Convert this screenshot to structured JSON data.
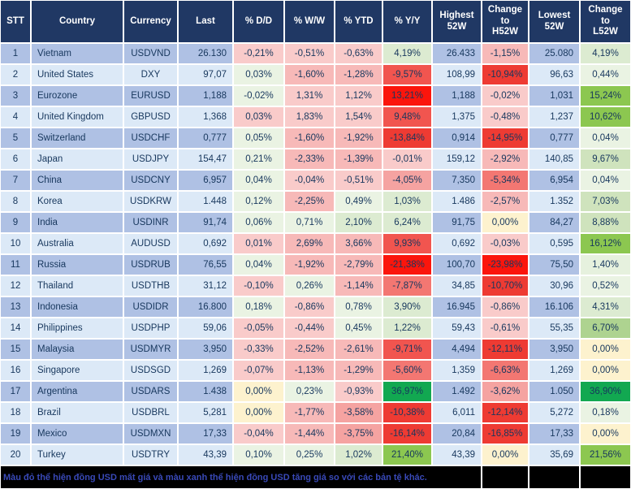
{
  "chart_data": {
    "type": "table",
    "columns": [
      "STT",
      "Country",
      "Currency",
      "Last",
      "% D/D",
      "% W/W",
      "% YTD",
      "% Y/Y",
      "Highest\n52W",
      "Change\nto\nH52W",
      "Lowest\n52W",
      "Change\nto\nL52W"
    ],
    "rows": [
      [
        {
          "v": "1"
        },
        {
          "v": "Vietnam"
        },
        {
          "v": "USDVND"
        },
        {
          "v": "26.130"
        },
        {
          "v": "-0,21%",
          "bg": "#F9CBCA"
        },
        {
          "v": "-0,51%",
          "bg": "#F9CBCA"
        },
        {
          "v": "-0,63%",
          "bg": "#F9CBCA"
        },
        {
          "v": "4,19%",
          "bg": "#DCEBD1"
        },
        {
          "v": "26.433"
        },
        {
          "v": "-1,15%",
          "bg": "#F7B9B8"
        },
        {
          "v": "25.080"
        },
        {
          "v": "4,19%",
          "bg": "#DCEBD1"
        }
      ],
      [
        {
          "v": "2"
        },
        {
          "v": "United States"
        },
        {
          "v": "DXY"
        },
        {
          "v": "97,07"
        },
        {
          "v": "0,03%",
          "bg": "#EAF3E3"
        },
        {
          "v": "-1,60%",
          "bg": "#F7B9B8"
        },
        {
          "v": "-1,28%",
          "bg": "#F7B9B8"
        },
        {
          "v": "-9,57%",
          "bg": "#F1554F"
        },
        {
          "v": "108,99"
        },
        {
          "v": "-10,94%",
          "bg": "#EE3B33"
        },
        {
          "v": "96,63"
        },
        {
          "v": "0,44%",
          "bg": "#EAF3E3"
        }
      ],
      [
        {
          "v": "3"
        },
        {
          "v": "Eurozone"
        },
        {
          "v": "EURUSD"
        },
        {
          "v": "1,188"
        },
        {
          "v": "-0,02%",
          "bg": "#EAF3E3"
        },
        {
          "v": "1,31%",
          "bg": "#F9CBCA"
        },
        {
          "v": "1,12%",
          "bg": "#F9CBCA"
        },
        {
          "v": "13,21%",
          "bg": "#FB150C"
        },
        {
          "v": "1,188"
        },
        {
          "v": "-0,02%",
          "bg": "#F9CBCA"
        },
        {
          "v": "1,031"
        },
        {
          "v": "15,24%",
          "bg": "#8CC750"
        }
      ],
      [
        {
          "v": "4"
        },
        {
          "v": "United Kingdom"
        },
        {
          "v": "GBPUSD"
        },
        {
          "v": "1,368"
        },
        {
          "v": "0,03%",
          "bg": "#F9CBCA"
        },
        {
          "v": "1,83%",
          "bg": "#F9CBCA"
        },
        {
          "v": "1,54%",
          "bg": "#F9CBCA"
        },
        {
          "v": "9,48%",
          "bg": "#F1554F"
        },
        {
          "v": "1,375"
        },
        {
          "v": "-0,48%",
          "bg": "#F9CBCA"
        },
        {
          "v": "1,237"
        },
        {
          "v": "10,62%",
          "bg": "#8CC750"
        }
      ],
      [
        {
          "v": "5"
        },
        {
          "v": "Switzerland"
        },
        {
          "v": "USDCHF"
        },
        {
          "v": "0,777"
        },
        {
          "v": "0,05%",
          "bg": "#EAF3E3"
        },
        {
          "v": "-1,60%",
          "bg": "#F7B9B8"
        },
        {
          "v": "-1,92%",
          "bg": "#F7B9B8"
        },
        {
          "v": "-13,84%",
          "bg": "#EE3B33"
        },
        {
          "v": "0,914"
        },
        {
          "v": "-14,95%",
          "bg": "#EE3B33"
        },
        {
          "v": "0,777"
        },
        {
          "v": "0,04%",
          "bg": "#EAF3E3"
        }
      ],
      [
        {
          "v": "6"
        },
        {
          "v": "Japan"
        },
        {
          "v": "USDJPY"
        },
        {
          "v": "154,47"
        },
        {
          "v": "0,21%",
          "bg": "#EAF3E3"
        },
        {
          "v": "-2,33%",
          "bg": "#F7B9B8"
        },
        {
          "v": "-1,39%",
          "bg": "#F7B9B8"
        },
        {
          "v": "-0,01%",
          "bg": "#F9CBCA"
        },
        {
          "v": "159,12"
        },
        {
          "v": "-2,92%",
          "bg": "#F7B9B8"
        },
        {
          "v": "140,85"
        },
        {
          "v": "9,67%",
          "bg": "#CFE3BD"
        }
      ],
      [
        {
          "v": "7"
        },
        {
          "v": "China"
        },
        {
          "v": "USDCNY"
        },
        {
          "v": "6,957"
        },
        {
          "v": "0,04%",
          "bg": "#EAF3E3"
        },
        {
          "v": "-0,04%",
          "bg": "#F9CBCA"
        },
        {
          "v": "-0,51%",
          "bg": "#F9CBCA"
        },
        {
          "v": "-4,05%",
          "bg": "#F5A3A1"
        },
        {
          "v": "7,350"
        },
        {
          "v": "-5,34%",
          "bg": "#F37772"
        },
        {
          "v": "6,954"
        },
        {
          "v": "0,04%",
          "bg": "#EAF3E3"
        }
      ],
      [
        {
          "v": "8"
        },
        {
          "v": "Korea"
        },
        {
          "v": "USDKRW"
        },
        {
          "v": "1.448"
        },
        {
          "v": "0,12%",
          "bg": "#EAF3E3"
        },
        {
          "v": "-2,25%",
          "bg": "#F7B9B8"
        },
        {
          "v": "0,49%",
          "bg": "#EAF3E3"
        },
        {
          "v": "1,03%",
          "bg": "#DCEBD1"
        },
        {
          "v": "1.486"
        },
        {
          "v": "-2,57%",
          "bg": "#F7B9B8"
        },
        {
          "v": "1.352"
        },
        {
          "v": "7,03%",
          "bg": "#CFE3BD"
        }
      ],
      [
        {
          "v": "9"
        },
        {
          "v": "India"
        },
        {
          "v": "USDINR"
        },
        {
          "v": "91,74"
        },
        {
          "v": "0,06%",
          "bg": "#EAF3E3"
        },
        {
          "v": "0,71%",
          "bg": "#EAF3E3"
        },
        {
          "v": "2,10%",
          "bg": "#DCEBD1"
        },
        {
          "v": "6,24%",
          "bg": "#DCEBD1"
        },
        {
          "v": "91,75"
        },
        {
          "v": "0,00%",
          "bg": "#FDF2CE"
        },
        {
          "v": "84,27"
        },
        {
          "v": "8,88%",
          "bg": "#CFE3BD"
        }
      ],
      [
        {
          "v": "10"
        },
        {
          "v": "Australia"
        },
        {
          "v": "AUDUSD"
        },
        {
          "v": "0,692"
        },
        {
          "v": "0,01%",
          "bg": "#F9CBCA"
        },
        {
          "v": "2,69%",
          "bg": "#F7B9B8"
        },
        {
          "v": "3,66%",
          "bg": "#F7B9B8"
        },
        {
          "v": "9,93%",
          "bg": "#F1554F"
        },
        {
          "v": "0,692"
        },
        {
          "v": "-0,03%",
          "bg": "#F9CBCA"
        },
        {
          "v": "0,595"
        },
        {
          "v": "16,12%",
          "bg": "#8CC750"
        }
      ],
      [
        {
          "v": "11"
        },
        {
          "v": "Russia"
        },
        {
          "v": "USDRUB"
        },
        {
          "v": "76,55"
        },
        {
          "v": "0,04%",
          "bg": "#EAF3E3"
        },
        {
          "v": "-1,92%",
          "bg": "#F7B9B8"
        },
        {
          "v": "-2,79%",
          "bg": "#F7B9B8"
        },
        {
          "v": "-21,38%",
          "bg": "#FB150C"
        },
        {
          "v": "100,70"
        },
        {
          "v": "-23,98%",
          "bg": "#FB150C"
        },
        {
          "v": "75,50"
        },
        {
          "v": "1,40%",
          "bg": "#E6F1DE"
        }
      ],
      [
        {
          "v": "12"
        },
        {
          "v": "Thailand"
        },
        {
          "v": "USDTHB"
        },
        {
          "v": "31,12"
        },
        {
          "v": "-0,10%",
          "bg": "#F9CBCA"
        },
        {
          "v": "0,26%",
          "bg": "#EAF3E3"
        },
        {
          "v": "-1,14%",
          "bg": "#F7B9B8"
        },
        {
          "v": "-7,87%",
          "bg": "#F37772"
        },
        {
          "v": "34,85"
        },
        {
          "v": "-10,70%",
          "bg": "#EE3B33"
        },
        {
          "v": "30,96"
        },
        {
          "v": "0,52%",
          "bg": "#EAF3E3"
        }
      ],
      [
        {
          "v": "13"
        },
        {
          "v": "Indonesia"
        },
        {
          "v": "USDIDR"
        },
        {
          "v": "16.800"
        },
        {
          "v": "0,18%",
          "bg": "#EAF3E3"
        },
        {
          "v": "-0,86%",
          "bg": "#F9CBCA"
        },
        {
          "v": "0,78%",
          "bg": "#EAF3E3"
        },
        {
          "v": "3,90%",
          "bg": "#DCEBD1"
        },
        {
          "v": "16.945"
        },
        {
          "v": "-0,86%",
          "bg": "#F9CBCA"
        },
        {
          "v": "16.106"
        },
        {
          "v": "4,31%",
          "bg": "#DCEBD1"
        }
      ],
      [
        {
          "v": "14"
        },
        {
          "v": "Philippines"
        },
        {
          "v": "USDPHP"
        },
        {
          "v": "59,06"
        },
        {
          "v": "-0,05%",
          "bg": "#F9CBCA"
        },
        {
          "v": "-0,44%",
          "bg": "#F9CBCA"
        },
        {
          "v": "0,45%",
          "bg": "#EAF3E3"
        },
        {
          "v": "1,22%",
          "bg": "#DCEBD1"
        },
        {
          "v": "59,43"
        },
        {
          "v": "-0,61%",
          "bg": "#F9CBCA"
        },
        {
          "v": "55,35"
        },
        {
          "v": "6,70%",
          "bg": "#AED390"
        }
      ],
      [
        {
          "v": "15"
        },
        {
          "v": "Malaysia"
        },
        {
          "v": "USDMYR"
        },
        {
          "v": "3,950"
        },
        {
          "v": "-0,33%",
          "bg": "#F9CBCA"
        },
        {
          "v": "-2,52%",
          "bg": "#F7B9B8"
        },
        {
          "v": "-2,61%",
          "bg": "#F7B9B8"
        },
        {
          "v": "-9,71%",
          "bg": "#F1554F"
        },
        {
          "v": "4,494"
        },
        {
          "v": "-12,11%",
          "bg": "#EE3B33"
        },
        {
          "v": "3,950"
        },
        {
          "v": "0,00%",
          "bg": "#FDF2CE"
        }
      ],
      [
        {
          "v": "16"
        },
        {
          "v": "Singapore"
        },
        {
          "v": "USDSGD"
        },
        {
          "v": "1,269"
        },
        {
          "v": "-0,07%",
          "bg": "#F9CBCA"
        },
        {
          "v": "-1,13%",
          "bg": "#F7B9B8"
        },
        {
          "v": "-1,29%",
          "bg": "#F7B9B8"
        },
        {
          "v": "-5,60%",
          "bg": "#F37772"
        },
        {
          "v": "1,359"
        },
        {
          "v": "-6,63%",
          "bg": "#F37772"
        },
        {
          "v": "1,269"
        },
        {
          "v": "0,00%",
          "bg": "#FDF2CE"
        }
      ],
      [
        {
          "v": "17"
        },
        {
          "v": "Argentina"
        },
        {
          "v": "USDARS"
        },
        {
          "v": "1.438"
        },
        {
          "v": "0,00%",
          "bg": "#FDF2CE"
        },
        {
          "v": "0,23%",
          "bg": "#EAF3E3"
        },
        {
          "v": "-0,93%",
          "bg": "#F9CBCA"
        },
        {
          "v": "36,97%",
          "bg": "#12A851"
        },
        {
          "v": "1.492"
        },
        {
          "v": "-3,62%",
          "bg": "#F5A3A1"
        },
        {
          "v": "1.050"
        },
        {
          "v": "36,90%",
          "bg": "#12A851"
        }
      ],
      [
        {
          "v": "18"
        },
        {
          "v": "Brazil"
        },
        {
          "v": "USDBRL"
        },
        {
          "v": "5,281"
        },
        {
          "v": "0,00%",
          "bg": "#FDF2CE"
        },
        {
          "v": "-1,77%",
          "bg": "#F7B9B8"
        },
        {
          "v": "-3,58%",
          "bg": "#F5A3A1"
        },
        {
          "v": "-10,38%",
          "bg": "#EE3B33"
        },
        {
          "v": "6,011"
        },
        {
          "v": "-12,14%",
          "bg": "#EE3B33"
        },
        {
          "v": "5,272"
        },
        {
          "v": "0,18%",
          "bg": "#EAF3E3"
        }
      ],
      [
        {
          "v": "19"
        },
        {
          "v": "Mexico"
        },
        {
          "v": "USDMXN"
        },
        {
          "v": "17,33"
        },
        {
          "v": "-0,04%",
          "bg": "#F9CBCA"
        },
        {
          "v": "-1,44%",
          "bg": "#F7B9B8"
        },
        {
          "v": "-3,75%",
          "bg": "#F5A3A1"
        },
        {
          "v": "-16,14%",
          "bg": "#EE3B33"
        },
        {
          "v": "20,84"
        },
        {
          "v": "-16,85%",
          "bg": "#EE3B33"
        },
        {
          "v": "17,33"
        },
        {
          "v": "0,00%",
          "bg": "#FDF2CE"
        }
      ],
      [
        {
          "v": "20"
        },
        {
          "v": "Turkey"
        },
        {
          "v": "USDTRY"
        },
        {
          "v": "43,39"
        },
        {
          "v": "0,10%",
          "bg": "#EAF3E3"
        },
        {
          "v": "0,25%",
          "bg": "#EAF3E3"
        },
        {
          "v": "1,02%",
          "bg": "#DCEBD1"
        },
        {
          "v": "21,40%",
          "bg": "#8CC750"
        },
        {
          "v": "43,39"
        },
        {
          "v": "0,00%",
          "bg": "#FDF2CE"
        },
        {
          "v": "35,69"
        },
        {
          "v": "21,56%",
          "bg": "#8CC750"
        }
      ]
    ],
    "legend_note": "Red = USD depreciating, green = USD appreciating vs other currencies",
    "grid": true
  },
  "footer": {
    "note": "Màu đỏ thể hiện đồng USD mất giá và màu xanh thể hiện đồng USD tăng giá so với các bản tệ khác."
  },
  "colors": {
    "header_bg": "#203864",
    "header_text": "#FFFFFF",
    "row_odd_bg": "#AFC1E4",
    "row_even_bg": "#DCE9F7",
    "cell_text": "#17375D",
    "footer_bg": "#000000",
    "footer_text": "#3949B8",
    "max_red": "#FB150C",
    "max_green": "#12A851",
    "zero_cream": "#FDF2CE"
  }
}
